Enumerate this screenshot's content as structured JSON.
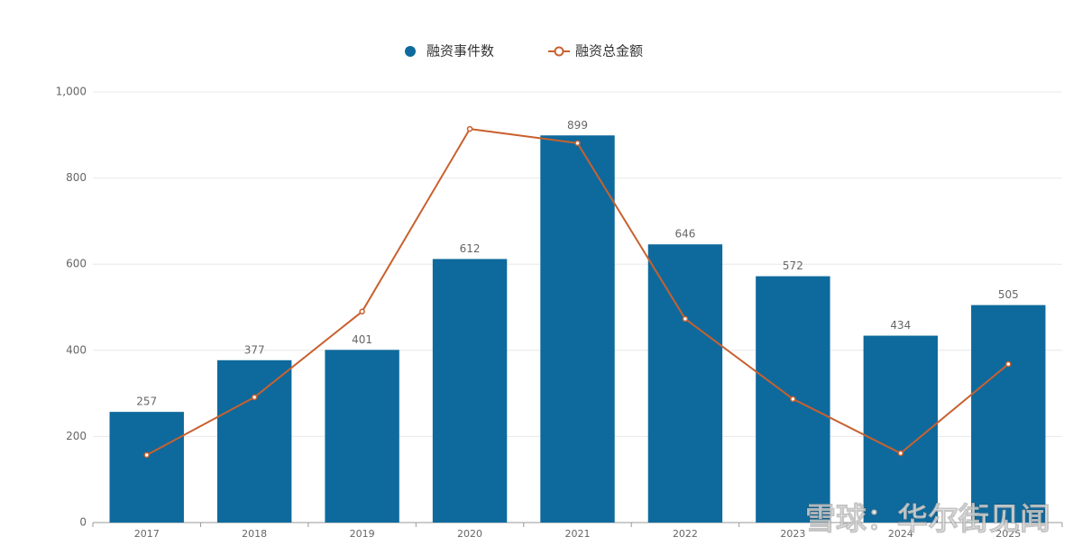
{
  "chart_data": {
    "type": "bar_line",
    "categories": [
      "2017",
      "2018",
      "2019",
      "2020",
      "2021",
      "2022",
      "2023",
      "2024",
      "2025"
    ],
    "series": [
      {
        "name": "融资事件数",
        "type": "bar",
        "color": "#0e6a9c",
        "values": [
          257,
          377,
          401,
          612,
          899,
          646,
          572,
          434,
          505
        ]
      },
      {
        "name": "融资总金额",
        "type": "line",
        "color": "#c8612f",
        "values": [
          157,
          291,
          490,
          914,
          881,
          473,
          287,
          161,
          368
        ]
      }
    ],
    "ylim": [
      0,
      1000
    ],
    "yticks": [
      0,
      200,
      400,
      600,
      800,
      {
        "value": 1000,
        "label": "1,000"
      }
    ],
    "grid": true,
    "legend": "top",
    "watermark": "雪球：华尔街见闻"
  }
}
